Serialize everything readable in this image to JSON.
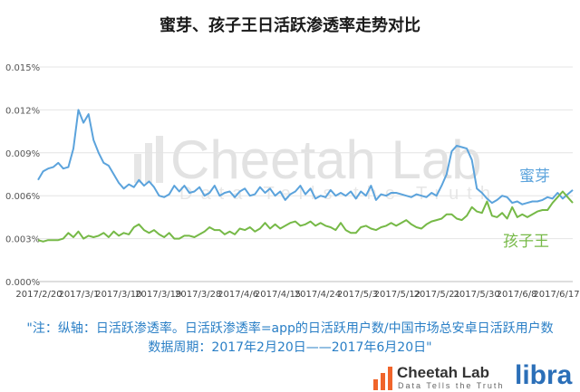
{
  "chart_data": {
    "type": "line",
    "title": "蜜芽、孩子王日活跃渗透率走势对比",
    "xlabel": "",
    "ylabel": "",
    "ylim": [
      0,
      0.015
    ],
    "yticks": [
      "0.000%",
      "0.003%",
      "0.006%",
      "0.009%",
      "0.012%",
      "0.015%"
    ],
    "xticks": [
      "2017/2/20",
      "2017/3/1",
      "2017/3/10",
      "2017/3/19",
      "2017/3/28",
      "2017/4/6",
      "2017/4/15",
      "2017/4/24",
      "2017/5/3",
      "2017/5/12",
      "2017/5/21",
      "2017/5/30",
      "2017/6/8",
      "2017/6/17"
    ],
    "grid": true,
    "legend": "inline labels at right",
    "series": [
      {
        "name": "蜜芽",
        "color": "#5ba3dc",
        "values": [
          0.0071,
          0.0077,
          0.0079,
          0.008,
          0.0083,
          0.0079,
          0.008,
          0.0093,
          0.012,
          0.0111,
          0.0117,
          0.0099,
          0.009,
          0.0083,
          0.0081,
          0.0075,
          0.0069,
          0.0065,
          0.0068,
          0.0066,
          0.0071,
          0.0067,
          0.007,
          0.0066,
          0.006,
          0.0059,
          0.0061,
          0.0067,
          0.0063,
          0.0067,
          0.0062,
          0.0063,
          0.0066,
          0.006,
          0.0062,
          0.0067,
          0.006,
          0.0062,
          0.0063,
          0.0059,
          0.0063,
          0.0065,
          0.006,
          0.0061,
          0.0066,
          0.0062,
          0.0065,
          0.006,
          0.0063,
          0.0057,
          0.0061,
          0.0063,
          0.0067,
          0.0061,
          0.0065,
          0.0058,
          0.006,
          0.0059,
          0.0064,
          0.006,
          0.0062,
          0.006,
          0.0063,
          0.0058,
          0.0063,
          0.006,
          0.0067,
          0.0057,
          0.0061,
          0.006,
          0.0062,
          0.0062,
          0.0061,
          0.006,
          0.0059,
          0.0061,
          0.006,
          0.0059,
          0.0062,
          0.006,
          0.0067,
          0.0075,
          0.0091,
          0.0095,
          0.0094,
          0.0093,
          0.0085,
          0.0065,
          0.0062,
          0.0058,
          0.0055,
          0.0057,
          0.006,
          0.0059,
          0.0055,
          0.0056,
          0.0054,
          0.0055,
          0.0056,
          0.0056,
          0.0057,
          0.0059,
          0.0058,
          0.0062,
          0.0058,
          0.0061,
          0.0064
        ],
        "label": "蜜芽"
      },
      {
        "name": "孩子王",
        "color": "#76b947",
        "values": [
          0.0029,
          0.0028,
          0.0029,
          0.0029,
          0.0029,
          0.003,
          0.0034,
          0.0031,
          0.0035,
          0.003,
          0.0032,
          0.0031,
          0.0032,
          0.0034,
          0.0031,
          0.0035,
          0.0032,
          0.0034,
          0.0033,
          0.0038,
          0.004,
          0.0036,
          0.0034,
          0.0036,
          0.0033,
          0.0031,
          0.0034,
          0.003,
          0.003,
          0.0032,
          0.0032,
          0.0031,
          0.0033,
          0.0035,
          0.0038,
          0.0036,
          0.0036,
          0.0033,
          0.0035,
          0.0033,
          0.0037,
          0.0036,
          0.0038,
          0.0035,
          0.0037,
          0.0041,
          0.0037,
          0.004,
          0.0037,
          0.0039,
          0.0041,
          0.0042,
          0.0039,
          0.004,
          0.0042,
          0.0039,
          0.0041,
          0.0039,
          0.0038,
          0.0036,
          0.0041,
          0.0036,
          0.0034,
          0.0034,
          0.0038,
          0.0039,
          0.0037,
          0.0036,
          0.0038,
          0.0039,
          0.0041,
          0.0039,
          0.0041,
          0.0043,
          0.004,
          0.0038,
          0.0037,
          0.004,
          0.0042,
          0.0043,
          0.0044,
          0.0047,
          0.0047,
          0.0044,
          0.0043,
          0.0046,
          0.0052,
          0.0049,
          0.0048,
          0.0056,
          0.0046,
          0.0045,
          0.0048,
          0.0044,
          0.0052,
          0.0045,
          0.0047,
          0.0045,
          0.0047,
          0.0049,
          0.005,
          0.005,
          0.0055,
          0.0059,
          0.0063,
          0.0059,
          0.0055
        ],
        "label": "孩子王"
      }
    ]
  },
  "notes": {
    "line1": "\"注：纵轴：日活跃渗透率。日活跃渗透率=app的日活跃用户数/中国市场总安卓日活跃用户数",
    "line2": "数据周期：2017年2月20日——2017年6月20日\""
  },
  "branding": {
    "cheetah_name": "Cheetah Lab",
    "cheetah_tagline": "Data Tells the Truth",
    "libra": "libra",
    "watermark_name": "Cheetah Lab",
    "watermark_tagline": "Data Tells the Truth"
  }
}
